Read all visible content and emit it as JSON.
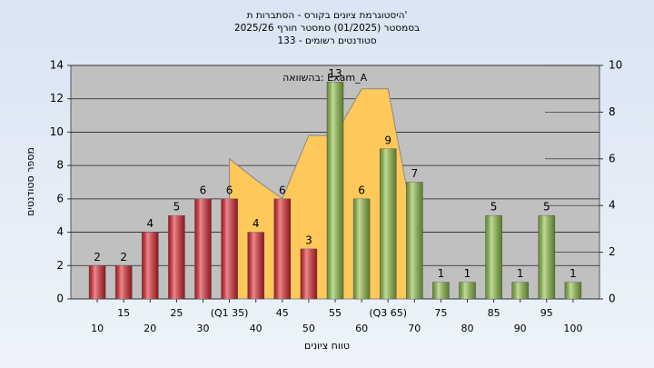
{
  "chart_data": {
    "type": "bar",
    "title": [
      "היסטוגרמת ציונים בקורס - הסתברות ת'",
      "בסמסטר (01/2025) סמסטר חורף 2025/26",
      "סטודנטים רשומים - 133"
    ],
    "x_label": "טווח ציונים",
    "y_label": "מספר סטודנטים",
    "x": [
      10,
      15,
      20,
      25,
      30,
      35,
      40,
      45,
      50,
      55,
      60,
      65,
      70,
      75,
      80,
      85,
      90,
      95,
      100
    ],
    "values": [
      2,
      2,
      4,
      5,
      6,
      6,
      4,
      6,
      3,
      13,
      6,
      9,
      7,
      1,
      1,
      5,
      1,
      5,
      1
    ],
    "colors": [
      "#e0262f",
      "#e0262f",
      "#e0262f",
      "#e0262f",
      "#e0262f",
      "#e0262f",
      "#e0262f",
      "#e0262f",
      "#e0262f",
      "#8fbf45",
      "#8fbf45",
      "#8fbf45",
      "#8fbf45",
      "#8fbf45",
      "#8fbf45",
      "#8fbf45",
      "#8fbf45",
      "#8fbf45",
      "#8fbf45"
    ],
    "xlim": [
      5,
      105
    ],
    "xticks": [
      10,
      15,
      20,
      25,
      30,
      {
        "value": 35,
        "label": "(Q1 35)"
      },
      40,
      45,
      50,
      55,
      60,
      {
        "value": 65,
        "label": "(Q3 65)"
      },
      70,
      75,
      80,
      85,
      90,
      95,
      100
    ],
    "ylim": [
      0,
      14
    ],
    "yticks": [
      0,
      2,
      4,
      6,
      8,
      10,
      12,
      14
    ],
    "y2lim": [
      0,
      10
    ],
    "y2ticks": [
      0,
      2,
      4,
      6,
      8,
      10
    ],
    "grid": true,
    "overlay": {
      "type": "area",
      "name": "בהשוואה: Exam_A",
      "axis": "y2",
      "color": "#ffc85a",
      "x": [
        35,
        40,
        45,
        50,
        55,
        60,
        65,
        70
      ],
      "values": [
        6,
        5.1,
        4.3,
        7,
        7,
        9,
        9,
        3
      ]
    }
  }
}
